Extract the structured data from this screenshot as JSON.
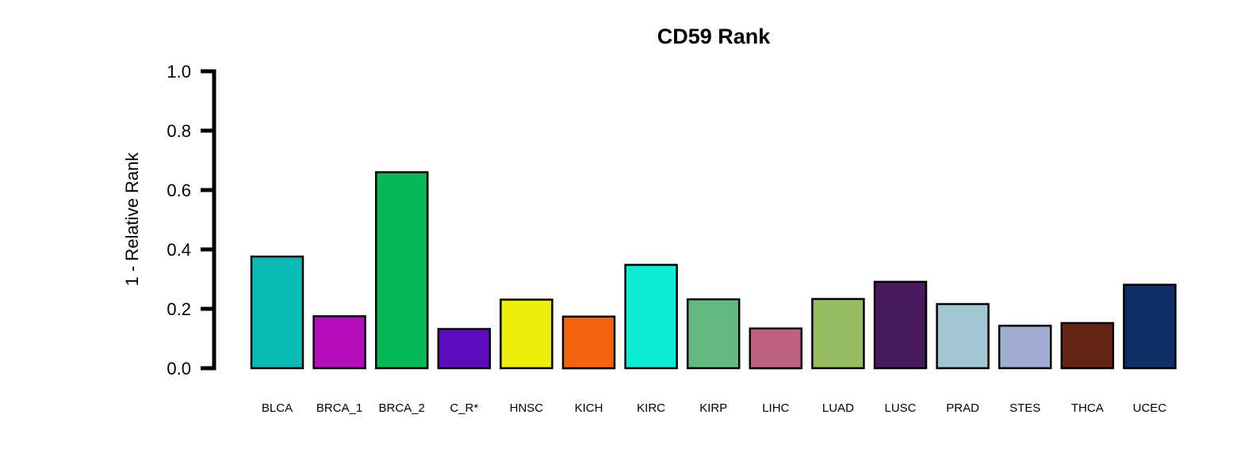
{
  "chart_data": {
    "type": "bar",
    "title": "CD59 Rank",
    "ylabel": "1 - Relative Rank",
    "xlabel": "",
    "ylim": [
      0,
      1.0
    ],
    "yticks": [
      "0.0",
      "0.2",
      "0.4",
      "0.6",
      "0.8",
      "1.0"
    ],
    "categories": [
      "BLCA",
      "BRCA_1",
      "BRCA_2",
      "C_R*",
      "HNSC",
      "KICH",
      "KIRC",
      "KIRP",
      "LIHC",
      "LUAD",
      "LUSC",
      "PRAD",
      "STES",
      "THCA",
      "UCEC"
    ],
    "values": [
      0.376,
      0.175,
      0.66,
      0.132,
      0.231,
      0.174,
      0.348,
      0.232,
      0.134,
      0.233,
      0.291,
      0.216,
      0.143,
      0.152,
      0.281
    ],
    "colors": [
      "#0ABAB5",
      "#B50CBE",
      "#06B856",
      "#5E0BBE",
      "#EEEE0B",
      "#F2620F",
      "#0DEDD5",
      "#63BA80",
      "#BD617F",
      "#96BD62",
      "#471B5E",
      "#A1C6D4",
      "#A0AED4",
      "#662512",
      "#0E2F66"
    ],
    "grid": false,
    "legend": "none"
  }
}
